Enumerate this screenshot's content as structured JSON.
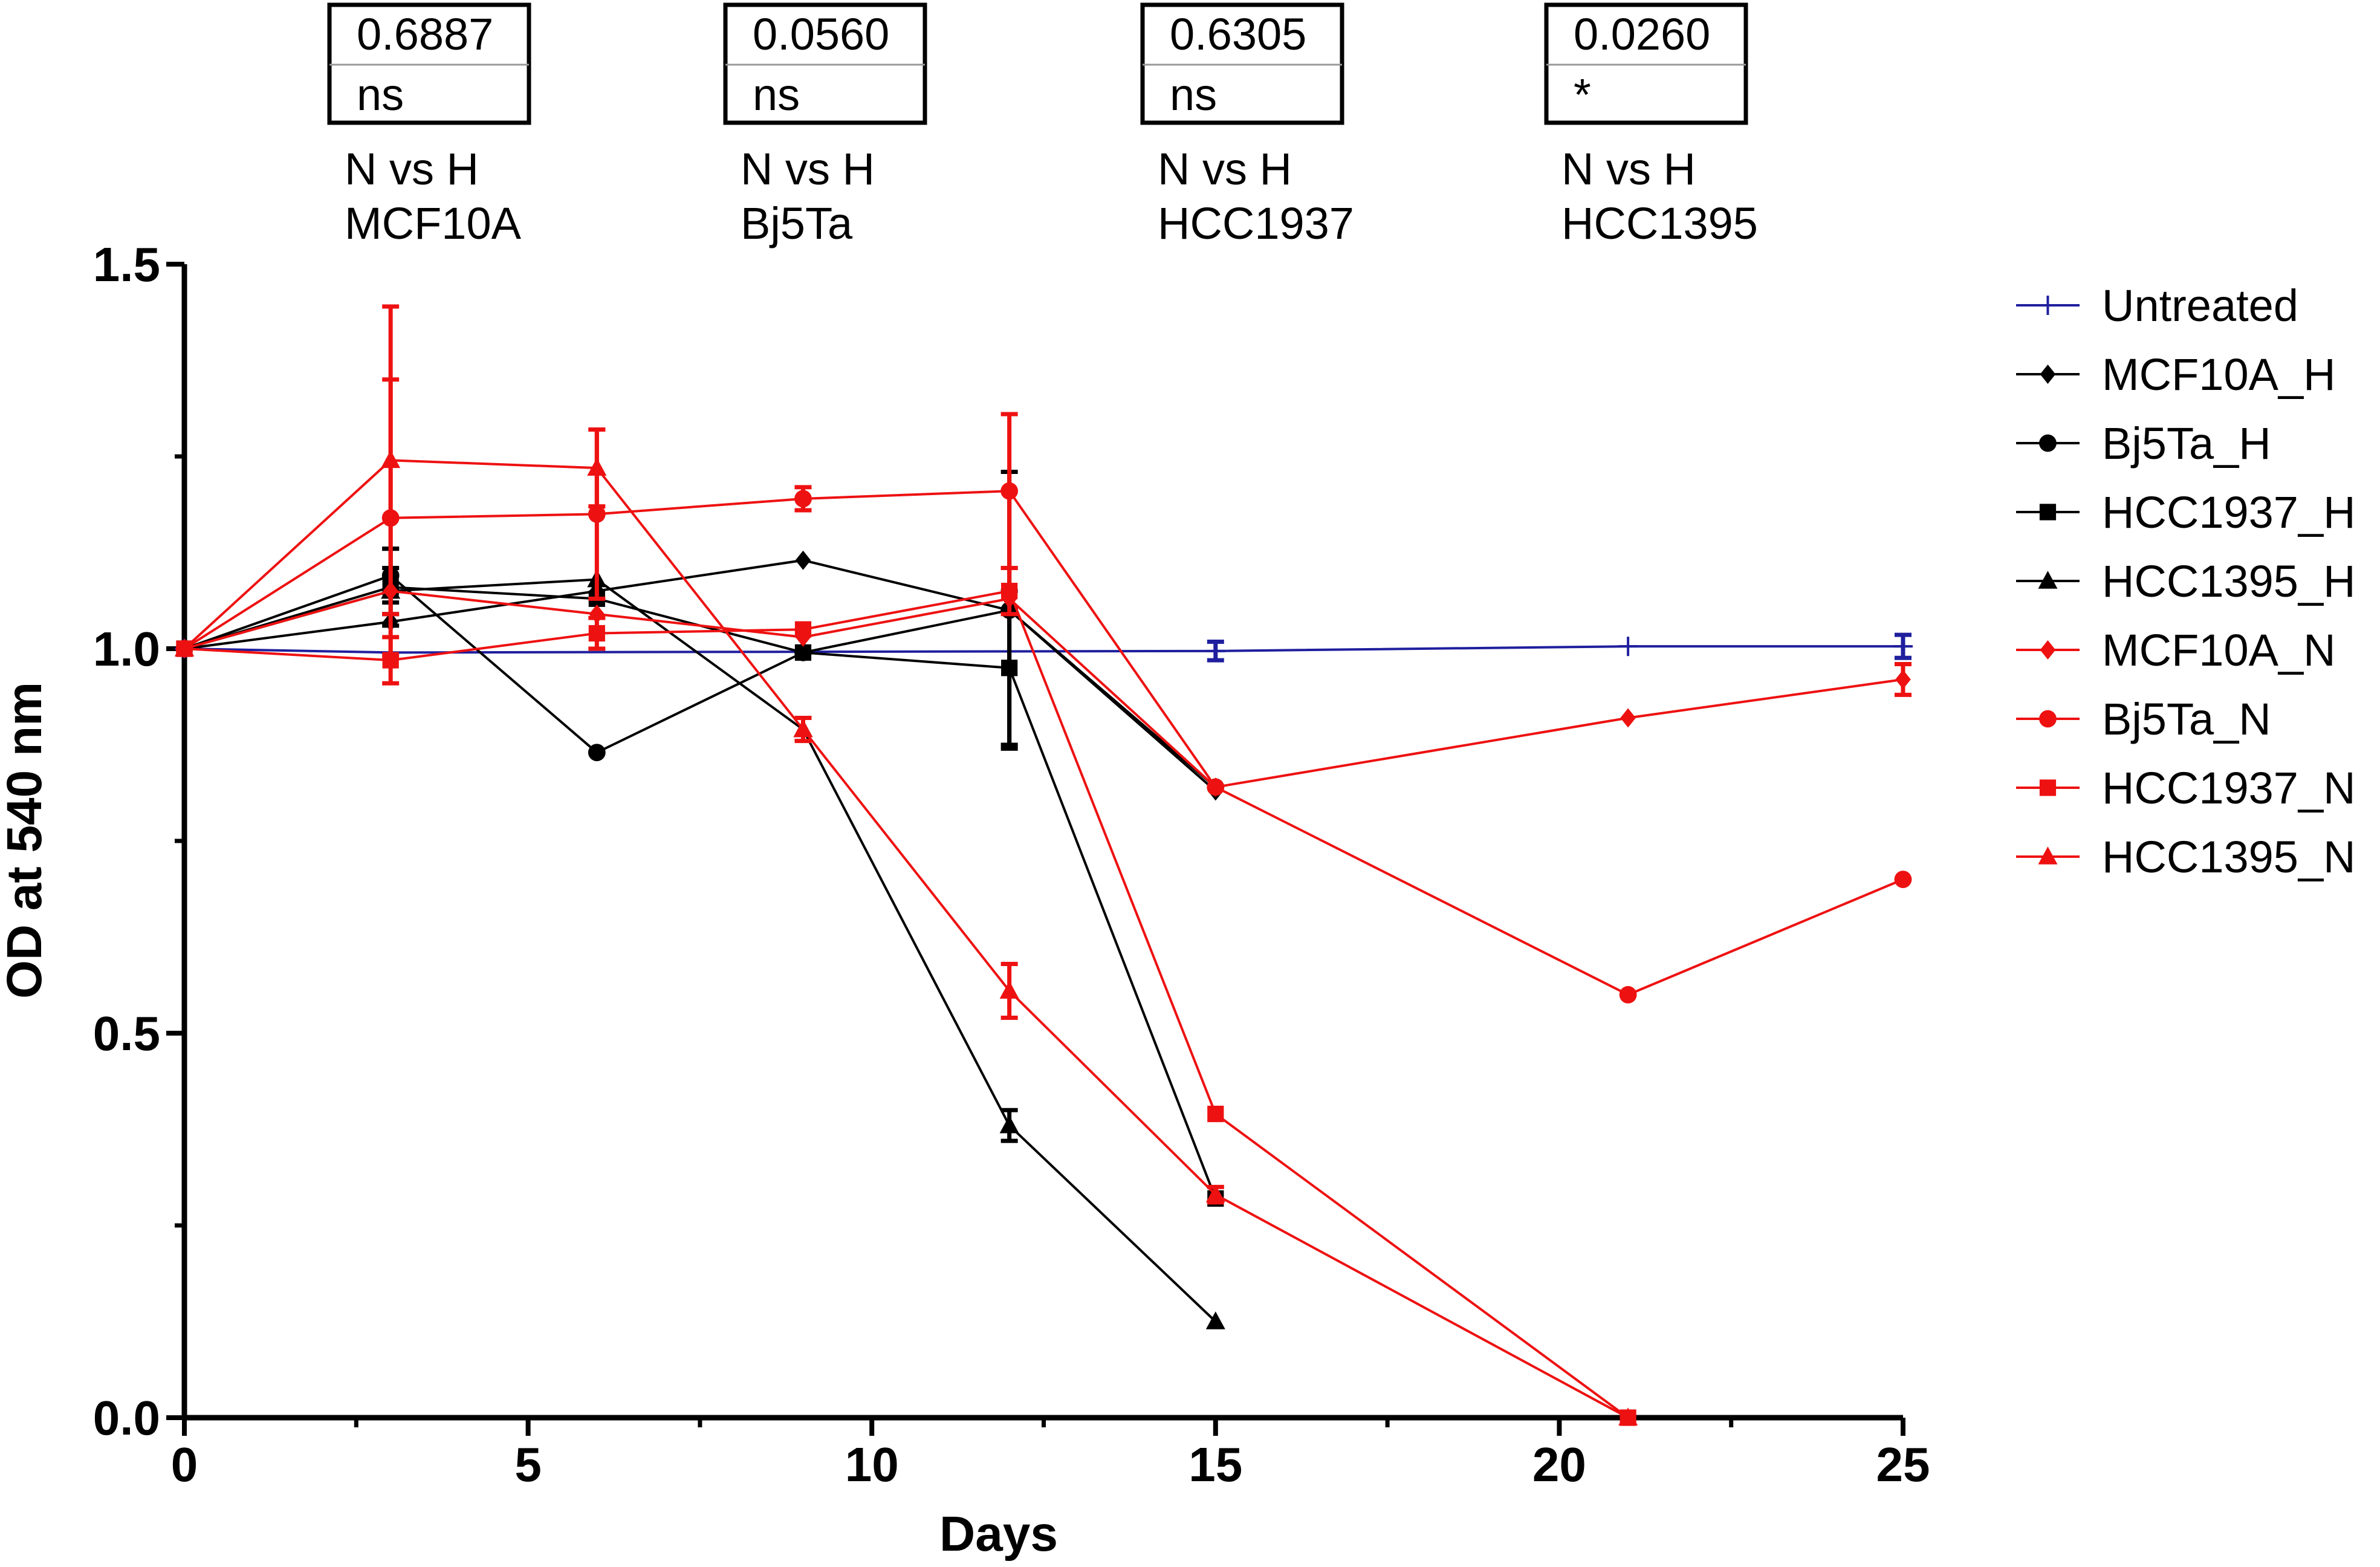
{
  "chart_data": {
    "type": "line",
    "xlabel": "Days",
    "ylabel": "OD at 540 nm",
    "xlim": [
      0,
      25
    ],
    "ylim": [
      0,
      1.5
    ],
    "xticks": [
      "0",
      "5",
      "10",
      "15",
      "20",
      "25"
    ],
    "yticks": [
      "0.0",
      "0.5",
      "1.0",
      "1.5"
    ],
    "legend_position": "right",
    "stats": [
      {
        "value": "0.6887",
        "sig": "ns",
        "comparison": "N vs H",
        "cell_line": "MCF10A"
      },
      {
        "value": "0.0560",
        "sig": "ns",
        "comparison": "N vs H",
        "cell_line": "Bj5Ta"
      },
      {
        "value": "0.6305",
        "sig": "ns",
        "comparison": "N vs H",
        "cell_line": "HCC1937"
      },
      {
        "value": "0.0260",
        "sig": "*",
        "comparison": "N vs H",
        "cell_line": "HCC1395"
      }
    ],
    "series": [
      {
        "name": "Untreated",
        "color": "#1f1f9e",
        "marker": "plus",
        "x": [
          0,
          3,
          15,
          21,
          25
        ],
        "y": [
          1.0,
          0.995,
          0.997,
          1.003,
          1.003
        ],
        "err": [
          0,
          0,
          0.012,
          0,
          0.015
        ]
      },
      {
        "name": "MCF10A_H",
        "color": "#000000",
        "marker": "diamond",
        "x": [
          0,
          3,
          6,
          9,
          12,
          15
        ],
        "y": [
          1.0,
          1.035,
          1.075,
          1.115,
          1.05,
          0.815
        ],
        "err": [
          0,
          0,
          0,
          0,
          0,
          0
        ]
      },
      {
        "name": "Bj5Ta_H",
        "color": "#000000",
        "marker": "circle",
        "x": [
          0,
          3,
          6,
          9,
          12,
          15
        ],
        "y": [
          1.0,
          1.095,
          0.865,
          0.995,
          1.05,
          0.82
        ],
        "err": [
          0,
          0.035,
          0,
          0,
          0.18,
          0
        ]
      },
      {
        "name": "HCC1937_H",
        "color": "#000000",
        "marker": "square",
        "x": [
          0,
          3,
          6,
          9,
          12,
          15
        ],
        "y": [
          1.0,
          1.08,
          1.065,
          0.995,
          0.975,
          0.285
        ],
        "err": [
          0,
          0.05,
          0,
          0,
          0.1,
          0
        ]
      },
      {
        "name": "HCC1395_H",
        "color": "#000000",
        "marker": "triangle",
        "x": [
          0,
          3,
          6,
          9,
          12,
          15
        ],
        "y": [
          1.0,
          1.075,
          1.09,
          0.895,
          0.38,
          0.125
        ],
        "err": [
          0,
          0.03,
          0,
          0,
          0.02,
          0
        ]
      },
      {
        "name": "MCF10A_N",
        "color": "#ee1111",
        "marker": "diamond",
        "x": [
          0,
          3,
          6,
          9,
          12,
          15,
          21,
          25
        ],
        "y": [
          1.0,
          1.075,
          1.045,
          1.015,
          1.065,
          0.82,
          0.91,
          0.96
        ],
        "err": [
          0,
          0,
          0,
          0,
          0,
          0,
          0,
          0.02
        ]
      },
      {
        "name": "Bj5Ta_N",
        "color": "#ee1111",
        "marker": "circle",
        "x": [
          0,
          3,
          6,
          9,
          12,
          15,
          21,
          25
        ],
        "y": [
          1.0,
          1.17,
          1.175,
          1.195,
          1.205,
          0.82,
          0.55,
          0.7
        ],
        "err": [
          0,
          0.18,
          0.11,
          0.015,
          0.1,
          0,
          0,
          0
        ]
      },
      {
        "name": "HCC1937_N",
        "color": "#ee1111",
        "marker": "square",
        "x": [
          0,
          3,
          6,
          9,
          12,
          15,
          21
        ],
        "y": [
          1.0,
          0.985,
          1.02,
          1.025,
          1.075,
          0.395,
          0.0
        ],
        "err": [
          0,
          0.03,
          0.02,
          0,
          0.03,
          0,
          0
        ]
      },
      {
        "name": "HCC1395_N",
        "color": "#ee1111",
        "marker": "triangle",
        "x": [
          0,
          3,
          6,
          9,
          12,
          15,
          21
        ],
        "y": [
          1.0,
          1.245,
          1.235,
          0.895,
          0.555,
          0.29,
          0.0
        ],
        "err": [
          0,
          0.2,
          0.05,
          0.015,
          0.035,
          0.01,
          0
        ]
      }
    ]
  }
}
